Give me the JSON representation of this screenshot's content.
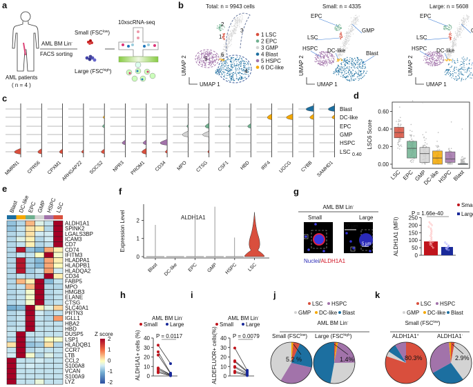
{
  "colors": {
    "LSC": "#d94f3d",
    "EPC": "#6fb08f",
    "GMP": "#d3d3d3",
    "Blast": "#1c6fa0",
    "HSPC": "#a273aa",
    "DC-like": "#f5a800",
    "small": "#c0141c",
    "large": "#1a2a9a"
  },
  "panel_labels": {
    "a": "a",
    "b": "b",
    "c": "c",
    "d": "d",
    "e": "e",
    "f": "f",
    "g": "g",
    "h": "h",
    "i": "i",
    "j": "j",
    "k": "k"
  },
  "panel_a": {
    "sorting_top": "AML BM Lin",
    "sorting_sup": "-",
    "sorting_bottom": "FACS sorting",
    "small_pre": "Small (FSC",
    "small_sup": "low",
    "small_post": ")",
    "large_pre": "Large (FSC",
    "large_sup": "high",
    "large_post": ")",
    "seq": "10xscRNA-seq",
    "patients": "AML patients",
    "n": "( n = 4 )"
  },
  "panel_b": {
    "total_title": "Total: n =  9943 cells",
    "small_title": "Small: n = 4335",
    "large_title": "Large: n = 5608",
    "xaxis": "UMAP 1",
    "yaxis": "UMAP 2",
    "legend": [
      "1 LSC",
      "2 EPC",
      "3 GMP",
      "4 Blast",
      "5 HSPC",
      "6 DC-like"
    ],
    "cluster_numbers": [
      "1",
      "2",
      "3",
      "4",
      "5",
      "6"
    ],
    "cluster_names": [
      "LSC",
      "EPC",
      "GMP",
      "Blast",
      "HSPC",
      "DC-like"
    ]
  },
  "chart_data": [
    {
      "panel": "c",
      "type": "violin",
      "genes": [
        "MMRN1",
        "CPR56",
        "CPXM1",
        "ARHGAP22",
        "SOCS2",
        "NPR3",
        "PROM1",
        "CD34",
        "MPO",
        "CTSG",
        "CSF1",
        "HBD",
        "IRF4",
        "UGCG",
        "CYBB",
        "SAMHD1"
      ],
      "clusters": [
        "Blast",
        "DC-like",
        "EPC",
        "GMP",
        "HSPC",
        "LSC"
      ],
      "scale_label": "0.40",
      "highlighted": [
        [
          "MMRN1",
          "LSC",
          1.0
        ],
        [
          "CPR56",
          "LSC",
          0.6
        ],
        [
          "CPXM1",
          "LSC",
          0.5
        ],
        [
          "ARHGAP22",
          "LSC",
          0.3
        ],
        [
          "SOCS2",
          "LSC",
          0.5
        ],
        [
          "SOCS2",
          "EPC",
          0.3
        ],
        [
          "SOCS2",
          "DC-like",
          0.2
        ],
        [
          "NPR3",
          "HSPC",
          0.5
        ],
        [
          "PROM1",
          "HSPC",
          0.5
        ],
        [
          "PROM1",
          "LSC",
          0.7
        ],
        [
          "CD34",
          "HSPC",
          1.1
        ],
        [
          "CD34",
          "LSC",
          0.3
        ],
        [
          "MPO",
          "GMP",
          0.9
        ],
        [
          "MPO",
          "EPC",
          0.2
        ],
        [
          "CTSG",
          "GMP",
          1.0
        ],
        [
          "CTSG",
          "EPC",
          0.6
        ],
        [
          "CTSG",
          "LSC",
          0.2
        ],
        [
          "CSF1",
          "EPC",
          0.2
        ],
        [
          "HBD",
          "EPC",
          0.5
        ],
        [
          "IRF4",
          "DC-like",
          0.7
        ],
        [
          "UGCG",
          "DC-like",
          1.0
        ],
        [
          "CYBB",
          "Blast",
          1.2
        ],
        [
          "CYBB",
          "DC-like",
          0.6
        ],
        [
          "SAMHD1",
          "Blast",
          1.0
        ],
        [
          "SAMHD1",
          "DC-like",
          0.4
        ]
      ]
    },
    {
      "panel": "d",
      "type": "box",
      "ylabel": "LSC6 Score",
      "categories": [
        "LSC",
        "EPC",
        "GMP",
        "DC-like",
        "HSPC",
        "Blast"
      ],
      "yticks": [
        "0.00",
        "0.20",
        "0.40",
        "0.60"
      ],
      "ylim": [
        0,
        0.72
      ],
      "q1": [
        0.3,
        0.07,
        0.02,
        0.0,
        0.02,
        0.0
      ],
      "median": [
        0.36,
        0.18,
        0.12,
        0.07,
        0.06,
        0.0
      ],
      "q3": [
        0.42,
        0.26,
        0.19,
        0.15,
        0.14,
        0.005
      ],
      "max": [
        0.65,
        0.72,
        0.7,
        0.36,
        0.48,
        0.4
      ]
    },
    {
      "panel": "e",
      "type": "heatmap",
      "title": "Z score",
      "colorbar_ticks": [
        "2",
        "1",
        "0",
        "-1",
        "-2"
      ],
      "columns": [
        "Blast",
        "DC-like",
        "EPC",
        "GMP",
        "HSPC",
        "LSC"
      ],
      "rows": [
        "ALDH1A1",
        "SPINK2",
        "LGALS3BP",
        "ICAM3",
        "CD7",
        "CD74",
        "IFITM3",
        "HLADPA1",
        "HLADPB1",
        "HLADQA2",
        "CD34",
        "FABP5",
        "MPO",
        "HMGB3",
        "ELANE",
        "CTSG",
        "SLC40A1",
        "PRTN3",
        "IGLL1",
        "HBA2",
        "HBD",
        "DUSP5",
        "LSP1",
        "HLADQB1",
        "CCR7",
        "LTB",
        "CCL2",
        "S100A8",
        "VCAN",
        "S100A9",
        "LYZ"
      ],
      "highlight_row": "ALDH1A1",
      "values": [
        [
          -0.8,
          -0.6,
          0.5,
          -0.3,
          -0.5,
          2
        ],
        [
          -0.8,
          -0.5,
          0.2,
          0.1,
          -0.6,
          2
        ],
        [
          -0.6,
          -0.5,
          0.2,
          -0.4,
          -0.4,
          2
        ],
        [
          -0.6,
          -0.3,
          0.1,
          -0.6,
          -0.4,
          2
        ],
        [
          -0.6,
          -0.5,
          0.1,
          -0.6,
          -0.5,
          2
        ],
        [
          -0.6,
          1.8,
          -0.8,
          -1,
          0.6,
          0.1
        ],
        [
          -0.6,
          -0.5,
          -0.5,
          0,
          2,
          -0.1
        ],
        [
          -0.6,
          1.8,
          -0.7,
          -0.9,
          0.6,
          0.1
        ],
        [
          -0.6,
          1.8,
          -0.7,
          -0.9,
          0.6,
          0
        ],
        [
          -0.6,
          1.8,
          -0.7,
          -0.5,
          0.7,
          -0.4
        ],
        [
          -0.6,
          -0.5,
          -0.6,
          -0.6,
          2,
          0.1
        ],
        [
          -0.6,
          0.5,
          0.1,
          2,
          -0.9,
          -0.5
        ],
        [
          -0.6,
          -0.5,
          0.5,
          2,
          -0.6,
          -0.6
        ],
        [
          -0.6,
          -0.5,
          -0.1,
          2,
          -0.6,
          -0.5
        ],
        [
          -0.6,
          -0.5,
          -0.1,
          2,
          -0.6,
          -0.5
        ],
        [
          -0.6,
          -0.5,
          -0.1,
          2,
          -0.6,
          -0.5
        ],
        [
          -1,
          -0.9,
          2,
          0.1,
          -0.3,
          0.3
        ],
        [
          -0.6,
          -0.5,
          2,
          -0.4,
          -0.6,
          -0.5
        ],
        [
          -0.6,
          -0.5,
          1.9,
          -0.5,
          -0.6,
          0.7
        ],
        [
          -0.6,
          -0.5,
          2,
          -0.5,
          -0.5,
          -0.5
        ],
        [
          -0.5,
          -0.5,
          2,
          -0.5,
          -0.5,
          -0.5
        ],
        [
          -0.5,
          2,
          -0.5,
          -0.5,
          -0.5,
          -0.5
        ],
        [
          -0.6,
          2,
          -0.6,
          -0.5,
          0,
          -0.1
        ],
        [
          0.2,
          2,
          -0.8,
          -0.7,
          0.2,
          -0.6
        ],
        [
          -0.5,
          2,
          -0.6,
          -0.5,
          -0.5,
          -0.5
        ],
        [
          -0.4,
          2,
          -0.1,
          -0.6,
          -0.3,
          -0.5
        ],
        [
          2,
          -0.5,
          -0.5,
          -0.4,
          -0.5,
          -0.5
        ],
        [
          2,
          -0.5,
          -0.4,
          -0.5,
          -0.5,
          -0.5
        ],
        [
          2,
          -0.5,
          -0.5,
          -0.5,
          -0.5,
          -0.5
        ],
        [
          2,
          -0.5,
          -0.5,
          -0.5,
          -0.5,
          -0.5
        ],
        [
          2,
          -0.5,
          -0.5,
          -0.2,
          -0.5,
          -0.5
        ]
      ]
    },
    {
      "panel": "f",
      "type": "violin",
      "title": "ALDH1A1",
      "ylabel": "Expression Level",
      "categories": [
        "Blast",
        "DC-like",
        "EPC",
        "GMP",
        "HSPC",
        "LSC"
      ],
      "yticks": [
        "0",
        "1",
        "2"
      ],
      "ylim": [
        0,
        2.9
      ],
      "max": [
        1.75,
        0,
        2.35,
        2.75,
        1.05,
        2.45
      ]
    },
    {
      "panel": "g",
      "type": "bar",
      "header": "AML BM Lin",
      "header_sup": "-",
      "image_labels": [
        "Small",
        "Large"
      ],
      "scale_bars": [
        "20 µm",
        "5 µm"
      ],
      "stain_nuclei": "Nuclei",
      "stain_sep": "/",
      "stain_target": "ALDH1A1",
      "ylabel": "ALDH1A1 (MFI)",
      "yticks": [
        "0",
        "50",
        "100",
        "150",
        "200",
        "250"
      ],
      "ylim": [
        0,
        250
      ],
      "p_value": "P = 1.66e-40",
      "legend": [
        "Small",
        "Large"
      ],
      "means": [
        92,
        55
      ],
      "small_points": [
        220,
        210,
        200,
        190,
        180,
        170,
        160,
        150,
        140,
        130,
        120,
        110,
        100,
        95,
        90,
        85,
        80,
        75,
        70,
        60,
        50
      ],
      "large_points": [
        85,
        75,
        65,
        60,
        55,
        50,
        48,
        45,
        40,
        35
      ]
    },
    {
      "panel": "h",
      "type": "paired_dot",
      "header": "AML BM Lin",
      "header_sup": "-",
      "legend": [
        "Small",
        "Large"
      ],
      "ylabel": "ALDH1A1+ cells (%)",
      "yticks": [
        "0",
        "10",
        "20",
        "30",
        "40"
      ],
      "ylim": [
        0,
        40
      ],
      "p_value": "P = 0.0117",
      "small": [
        32.5,
        25.5,
        22,
        8.5,
        7,
        5,
        3.5
      ],
      "large": [
        13,
        3,
        2.5,
        1.5,
        1,
        0.5,
        0.3
      ]
    },
    {
      "panel": "i",
      "type": "paired_dot",
      "header": "AML BM Lin",
      "header_sup": "-",
      "legend": [
        "Small",
        "Large"
      ],
      "ylabel": "ALDEFLUOR+ cells(%)",
      "yticks": [
        "0",
        "10",
        "20",
        "30",
        "40"
      ],
      "ylim": [
        0,
        40
      ],
      "p_value": "P = 0.0079",
      "small": [
        29.5,
        16,
        15,
        10,
        9,
        5,
        3.5
      ],
      "large": [
        6,
        5,
        4,
        3,
        1.5,
        1,
        0.5
      ]
    },
    {
      "panel": "j",
      "type": "pie",
      "legend": [
        "LSC",
        "HSPC",
        "GMP",
        "DC-like",
        "Blast"
      ],
      "header": "AML BM Lin",
      "header_sup": "-",
      "pies": [
        {
          "pre": "Small (FSC",
          "sup": "low",
          "post": ")",
          "annotation": "5.2 %",
          "slices": [
            [
              "DC-like",
              1.5
            ],
            [
              "LSC",
              5.2
            ],
            [
              "Blast",
              22
            ],
            [
              "HSPC",
              30
            ],
            [
              "GMP",
              41.3
            ]
          ]
        },
        {
          "pre": "Large (FSC",
          "sup": "high",
          "post": ")",
          "annotation": "1.4%",
          "slices": [
            [
              "LSC",
              1.4
            ],
            [
              "DC-like",
              1.5
            ],
            [
              "HSPC",
              22
            ],
            [
              "GMP",
              28
            ],
            [
              "Blast",
              47.1
            ]
          ]
        }
      ]
    },
    {
      "panel": "k",
      "type": "pie",
      "legend": [
        "LSC",
        "HSPC",
        "GMP",
        "DC-like",
        "Blast"
      ],
      "header": "Small (FSC",
      "header_sup": "low",
      "header_post": ")",
      "pies": [
        {
          "pre": "ALDH1A1",
          "sup": "+",
          "post": "",
          "annotation": "80.3%",
          "slices": [
            [
              "LSC",
              80.3
            ],
            [
              "GMP",
              4
            ],
            [
              "Blast",
              7
            ],
            [
              "HSPC",
              8.7
            ]
          ]
        },
        {
          "pre": "ALDH1A1",
          "sup": "-",
          "post": "",
          "annotation": "2.9%",
          "slices": [
            [
              "LSC",
              2.9
            ],
            [
              "GMP",
              37
            ],
            [
              "Blast",
              27
            ],
            [
              "HSPC",
              31.6
            ],
            [
              "DC-like",
              1.5
            ]
          ]
        }
      ]
    }
  ]
}
